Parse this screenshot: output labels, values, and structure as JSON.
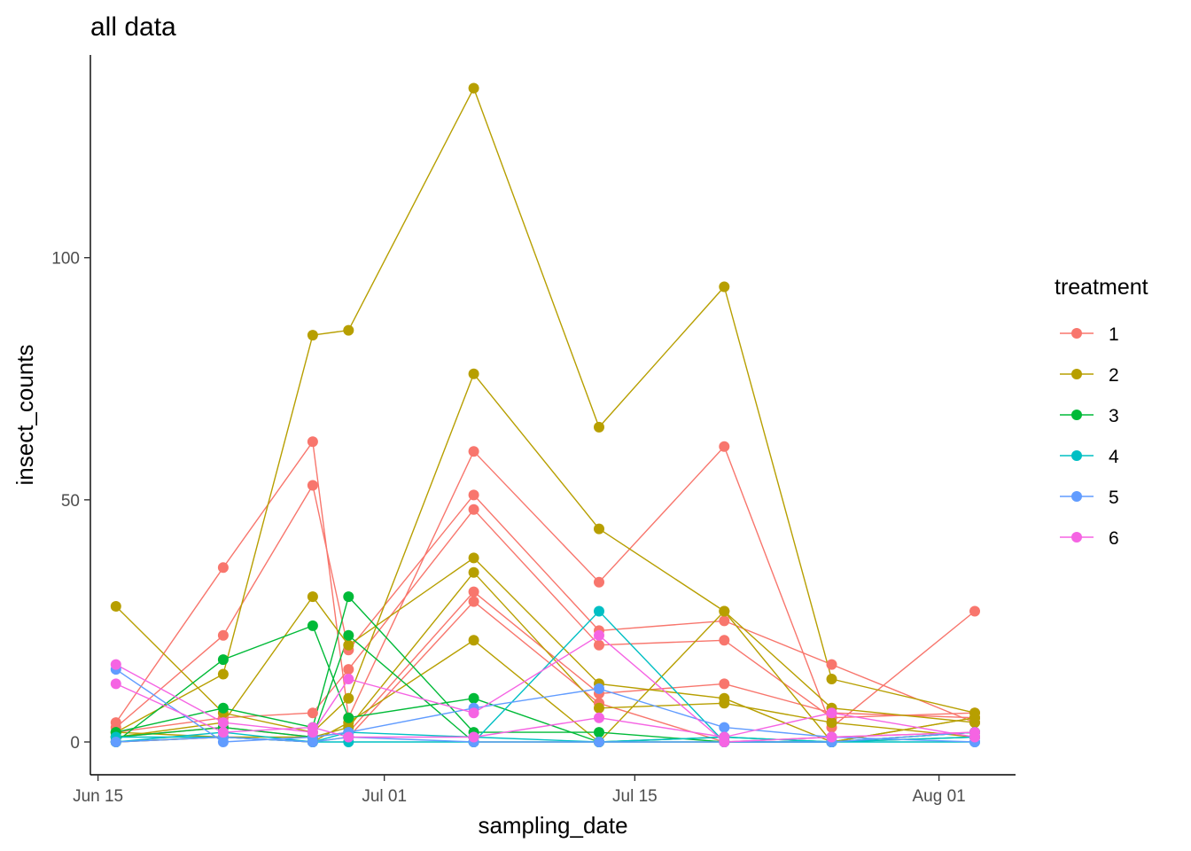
{
  "chart_data": {
    "type": "line",
    "title": "all data",
    "xlabel": "sampling_date",
    "ylabel": "insect_counts",
    "x_dates": [
      "2020-06-16",
      "2020-06-22",
      "2020-06-27",
      "2020-06-29",
      "2020-07-06",
      "2020-07-13",
      "2020-07-20",
      "2020-07-26",
      "2020-08-03"
    ],
    "xlim": [
      "2020-06-15",
      "2020-08-04"
    ],
    "ylim": [
      0,
      135
    ],
    "x_ticks": [
      {
        "date": "2020-06-15",
        "label": "Jun 15"
      },
      {
        "date": "2020-07-01",
        "label": "Jul 01"
      },
      {
        "date": "2020-07-15",
        "label": "Jul 15"
      },
      {
        "date": "2020-08-01",
        "label": "Aug 01"
      }
    ],
    "y_ticks": [
      0,
      50,
      100
    ],
    "grid": false,
    "legend": {
      "title": "treatment",
      "position": "right"
    },
    "series": [
      {
        "name": "1",
        "color": "#F8766D",
        "values": [
          4,
          36,
          62,
          5,
          60,
          33,
          61,
          3,
          27
        ]
      },
      {
        "name": "1",
        "color": "#F8766D",
        "values": [
          3,
          22,
          53,
          19,
          51,
          23,
          25,
          16,
          4
        ]
      },
      {
        "name": "1",
        "color": "#F8766D",
        "values": [
          2,
          5,
          6,
          15,
          48,
          20,
          21,
          5,
          6
        ]
      },
      {
        "name": "1",
        "color": "#F8766D",
        "values": [
          1,
          3,
          1,
          2,
          31,
          10,
          12,
          6,
          5
        ]
      },
      {
        "name": "1",
        "color": "#F8766D",
        "values": [
          0,
          1,
          0,
          1,
          29,
          8,
          0,
          1,
          2
        ]
      },
      {
        "name": "2",
        "color": "#B79F00",
        "values": [
          2,
          14,
          84,
          85,
          135,
          65,
          94,
          13,
          6
        ]
      },
      {
        "name": "2",
        "color": "#B79F00",
        "values": [
          28,
          6,
          2,
          9,
          76,
          44,
          27,
          7,
          4
        ]
      },
      {
        "name": "2",
        "color": "#B79F00",
        "values": [
          1,
          4,
          30,
          20,
          38,
          12,
          9,
          0,
          5
        ]
      },
      {
        "name": "2",
        "color": "#B79F00",
        "values": [
          2,
          1,
          1,
          3,
          35,
          7,
          8,
          4,
          1
        ]
      },
      {
        "name": "2",
        "color": "#B79F00",
        "values": [
          0,
          1,
          0,
          4,
          21,
          0,
          27,
          0,
          5
        ]
      },
      {
        "name": "3",
        "color": "#00BA38",
        "values": [
          0,
          17,
          24,
          5,
          9,
          0,
          1,
          0,
          2
        ]
      },
      {
        "name": "3",
        "color": "#00BA38",
        "values": [
          2,
          7,
          3,
          30,
          2,
          2,
          0,
          0,
          1
        ]
      },
      {
        "name": "3",
        "color": "#00BA38",
        "values": [
          1,
          3,
          1,
          22,
          0,
          0,
          0,
          0,
          2
        ]
      },
      {
        "name": "4",
        "color": "#00BFC4",
        "values": [
          0,
          2,
          0,
          0,
          0,
          27,
          0,
          0,
          0
        ]
      },
      {
        "name": "4",
        "color": "#00BFC4",
        "values": [
          1,
          1,
          0,
          2,
          1,
          0,
          1,
          0,
          1
        ]
      },
      {
        "name": "5",
        "color": "#619CFF",
        "values": [
          15,
          0,
          1,
          2,
          7,
          11,
          3,
          1,
          0
        ]
      },
      {
        "name": "5",
        "color": "#619CFF",
        "values": [
          0,
          1,
          0,
          1,
          0,
          0,
          0,
          0,
          2
        ]
      },
      {
        "name": "6",
        "color": "#F564E3",
        "values": [
          16,
          4,
          2,
          13,
          6,
          22,
          0,
          1,
          2
        ]
      },
      {
        "name": "6",
        "color": "#F564E3",
        "values": [
          12,
          2,
          3,
          1,
          1,
          5,
          1,
          6,
          1
        ]
      }
    ]
  },
  "legend_items": [
    {
      "label": "1",
      "color": "#F8766D"
    },
    {
      "label": "2",
      "color": "#B79F00"
    },
    {
      "label": "3",
      "color": "#00BA38"
    },
    {
      "label": "4",
      "color": "#00BFC4"
    },
    {
      "label": "5",
      "color": "#619CFF"
    },
    {
      "label": "6",
      "color": "#F564E3"
    }
  ]
}
